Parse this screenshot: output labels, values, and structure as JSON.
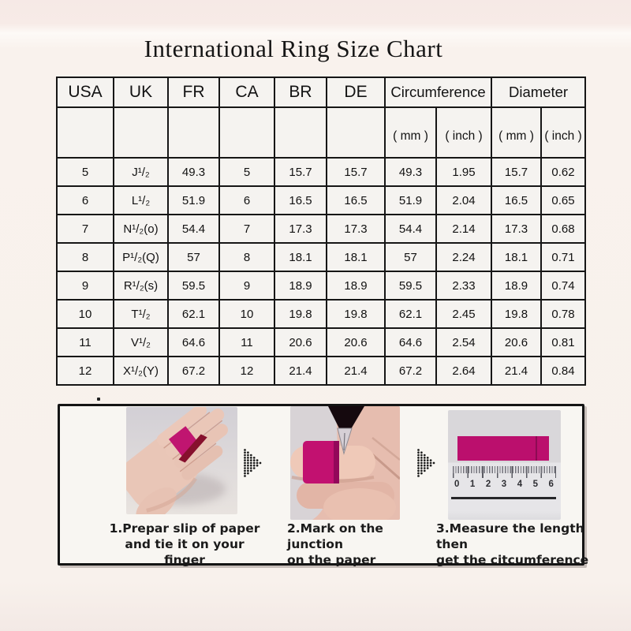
{
  "page": {
    "title": "International Ring Size Chart"
  },
  "table": {
    "columns": [
      "USA",
      "UK",
      "FR",
      "CA",
      "BR",
      "DE"
    ],
    "circumference_label": "Circumference",
    "diameter_label": "Diameter",
    "unit_headers": [
      "( mm )",
      "( inch )",
      "( mm )",
      "( inch )"
    ],
    "rows": [
      [
        "5",
        "J¹/₂",
        "49.3",
        "5",
        "15.7",
        "15.7",
        "49.3",
        "1.95",
        "15.7",
        "0.62"
      ],
      [
        "6",
        "L¹/₂",
        "51.9",
        "6",
        "16.5",
        "16.5",
        "51.9",
        "2.04",
        "16.5",
        "0.65"
      ],
      [
        "7",
        "N¹/₂(o)",
        "54.4",
        "7",
        "17.3",
        "17.3",
        "54.4",
        "2.14",
        "17.3",
        "0.68"
      ],
      [
        "8",
        "P¹/₂(Q)",
        "57",
        "8",
        "18.1",
        "18.1",
        "57",
        "2.24",
        "18.1",
        "0.71"
      ],
      [
        "9",
        "R¹/₂(s)",
        "59.5",
        "9",
        "18.9",
        "18.9",
        "59.5",
        "2.33",
        "18.9",
        "0.74"
      ],
      [
        "10",
        "T¹/₂",
        "62.1",
        "10",
        "19.8",
        "19.8",
        "62.1",
        "2.45",
        "19.8",
        "0.78"
      ],
      [
        "11",
        "V¹/₂",
        "64.6",
        "11",
        "20.6",
        "20.6",
        "64.6",
        "2.54",
        "20.6",
        "0.81"
      ],
      [
        "12",
        "X¹/₂(Y)",
        "67.2",
        "12",
        "21.4",
        "21.4",
        "67.2",
        "2.64",
        "21.4",
        "0.84"
      ]
    ]
  },
  "chart_data": {
    "type": "table",
    "title": "International Ring Size Chart",
    "columns": [
      "USA",
      "UK",
      "FR",
      "CA",
      "BR",
      "DE",
      "Circumference ( mm )",
      "Circumference ( inch )",
      "Diameter ( mm )",
      "Diameter ( inch )"
    ],
    "rows": [
      [
        "5",
        "J¹/₂",
        "49.3",
        "5",
        "15.7",
        "15.7",
        "49.3",
        "1.95",
        "15.7",
        "0.62"
      ],
      [
        "6",
        "L¹/₂",
        "51.9",
        "6",
        "16.5",
        "16.5",
        "51.9",
        "2.04",
        "16.5",
        "0.65"
      ],
      [
        "7",
        "N¹/₂(o)",
        "54.4",
        "7",
        "17.3",
        "17.3",
        "54.4",
        "2.14",
        "17.3",
        "0.68"
      ],
      [
        "8",
        "P¹/₂(Q)",
        "57",
        "8",
        "18.1",
        "18.1",
        "57",
        "2.24",
        "18.1",
        "0.71"
      ],
      [
        "9",
        "R¹/₂(s)",
        "59.5",
        "9",
        "18.9",
        "18.9",
        "59.5",
        "2.33",
        "18.9",
        "0.74"
      ],
      [
        "10",
        "T¹/₂",
        "62.1",
        "10",
        "19.8",
        "19.8",
        "62.1",
        "2.45",
        "19.8",
        "0.78"
      ],
      [
        "11",
        "V¹/₂",
        "64.6",
        "11",
        "20.6",
        "20.6",
        "64.6",
        "2.54",
        "20.6",
        "0.81"
      ],
      [
        "12",
        "X¹/₂(Y)",
        "67.2",
        "12",
        "21.4",
        "21.4",
        "67.2",
        "2.64",
        "21.4",
        "0.84"
      ]
    ]
  },
  "instructions": {
    "steps": [
      {
        "caption_line1": "1.Prepar slip of paper",
        "caption_line2": "and tie it on your finger"
      },
      {
        "caption_line1": "2.Mark on the junction",
        "caption_line2": "on the paper"
      },
      {
        "caption_line1": "3.Measure the length then",
        "caption_line2": "get the citcumference"
      }
    ],
    "ruler_numbers": [
      "0",
      "1",
      "2",
      "3",
      "4",
      "5",
      "6"
    ]
  },
  "colors": {
    "accent_magenta": "#bb0f6d",
    "dark_red": "#86102d",
    "table_border": "#161616",
    "page_background": "#f8f1ec",
    "photo_background": "#d8d4d7"
  }
}
